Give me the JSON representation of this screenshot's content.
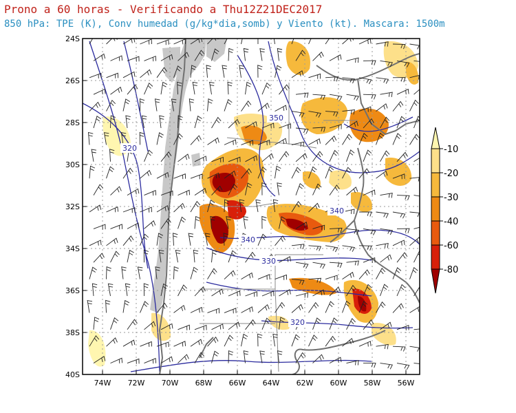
{
  "header": {
    "title": "Prono a 60 horas - Verificando a Thu12Z21DEC2017",
    "subtitle": "850 hPa: TPE (K), Conv humedad (g/kg*dia,somb) y Viento (kt). Mascara: 1500m"
  },
  "map": {
    "lat_ticks": [
      "24S",
      "26S",
      "28S",
      "30S",
      "32S",
      "34S",
      "36S",
      "38S",
      "40S"
    ],
    "lon_ticks": [
      "74W",
      "72W",
      "70W",
      "68W",
      "66W",
      "64W",
      "62W",
      "60W",
      "58W",
      "56W"
    ],
    "lat_range": [
      -40,
      -24
    ],
    "lon_range": [
      -75,
      -55
    ],
    "isotherm_labels": [
      "350",
      "320",
      "340",
      "340",
      "330",
      "320"
    ],
    "mask_color": "#c8c8c8",
    "isotherm_color": "#2b2b9e",
    "boundary_color": "#707070"
  },
  "colorbar": {
    "labels": [
      "-10",
      "-20",
      "-30",
      "-40",
      "-60",
      "-80"
    ],
    "colors": [
      "#fff6b0",
      "#fde08a",
      "#f6b93c",
      "#ee8a14",
      "#e85a0e",
      "#d8200a",
      "#a00000"
    ]
  }
}
